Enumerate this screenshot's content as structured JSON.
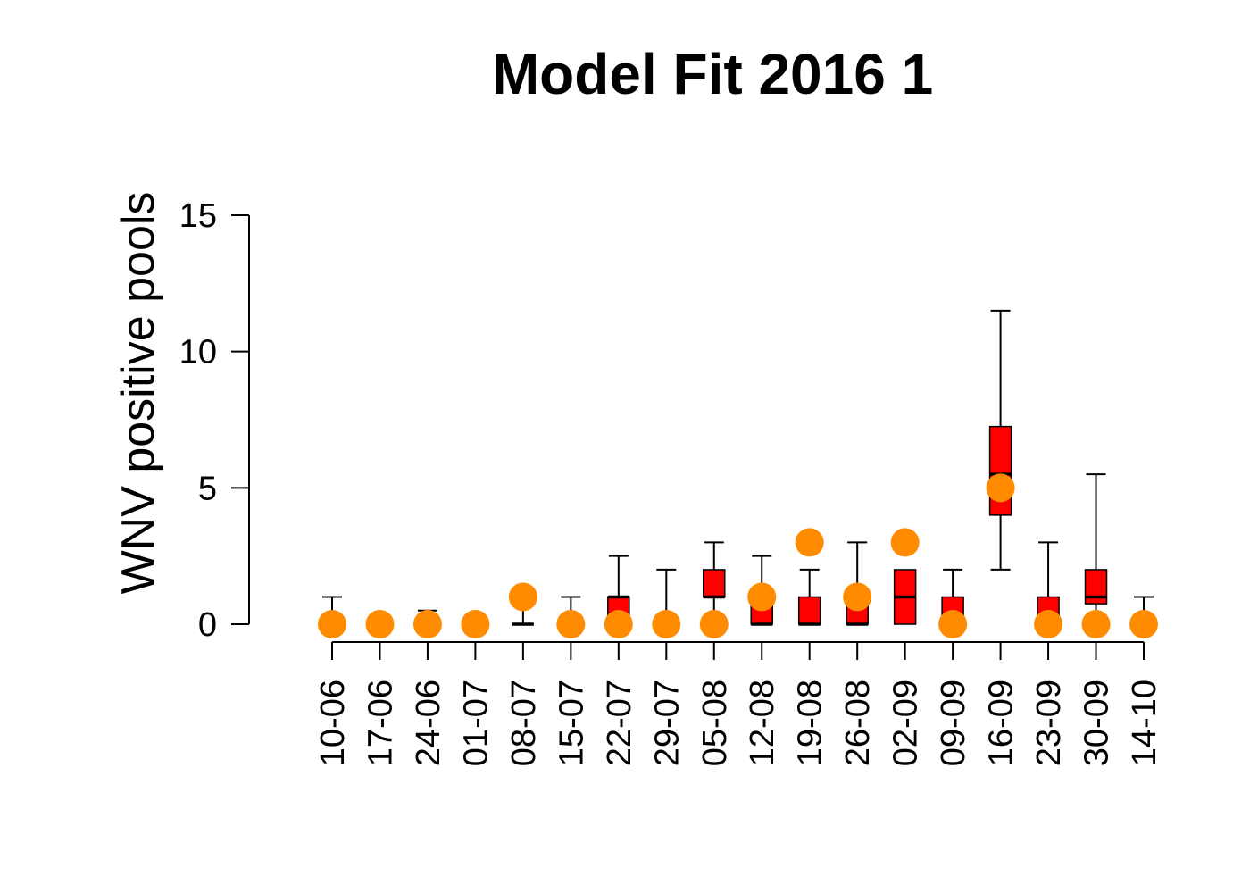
{
  "chart_data": {
    "type": "boxplot",
    "title": "Model Fit 2016 1",
    "ylabel": "WNV positive pools",
    "xlabel": "",
    "ylim": [
      0,
      15
    ],
    "yticks": [
      0,
      5,
      10,
      15
    ],
    "grid": false,
    "colors": {
      "box_fill": "#ff0000",
      "observed": "#ff8c00",
      "line": "#000000"
    },
    "categories": [
      "10-06",
      "17-06",
      "24-06",
      "01-07",
      "08-07",
      "15-07",
      "22-07",
      "29-07",
      "05-08",
      "12-08",
      "19-08",
      "26-08",
      "02-09",
      "09-09",
      "16-09",
      "23-09",
      "30-09",
      "14-10"
    ],
    "boxes": [
      {
        "min": 0,
        "q1": 0,
        "median": 0,
        "q3": 0,
        "max": 1
      },
      {
        "min": 0,
        "q1": 0,
        "median": 0,
        "q3": 0,
        "max": 0
      },
      {
        "min": 0,
        "q1": 0,
        "median": 0,
        "q3": 0,
        "max": 0.5
      },
      {
        "min": 0,
        "q1": 0,
        "median": 0,
        "q3": 0,
        "max": 0
      },
      {
        "min": 0,
        "q1": 0,
        "median": 0,
        "q3": 0,
        "max": 1
      },
      {
        "min": 0,
        "q1": 0,
        "median": 0,
        "q3": 0,
        "max": 1
      },
      {
        "min": 0,
        "q1": 0,
        "median": 1,
        "q3": 1,
        "max": 2.5
      },
      {
        "min": 0,
        "q1": 0,
        "median": 0,
        "q3": 0,
        "max": 2
      },
      {
        "min": 0,
        "q1": 1,
        "median": 1,
        "q3": 2,
        "max": 3
      },
      {
        "min": 0,
        "q1": 0,
        "median": 0,
        "q3": 1,
        "max": 2.5
      },
      {
        "min": 0,
        "q1": 0,
        "median": 0,
        "q3": 1,
        "max": 2
      },
      {
        "min": 0,
        "q1": 0,
        "median": 0,
        "q3": 1,
        "max": 3
      },
      {
        "min": 0,
        "q1": 0,
        "median": 1,
        "q3": 2,
        "max": 2
      },
      {
        "min": 0,
        "q1": 0,
        "median": 0,
        "q3": 1,
        "max": 2
      },
      {
        "min": 2,
        "q1": 4,
        "median": 5.5,
        "q3": 7.25,
        "max": 11.5
      },
      {
        "min": 0,
        "q1": 0,
        "median": 0,
        "q3": 1,
        "max": 3
      },
      {
        "min": 0,
        "q1": 0.75,
        "median": 1,
        "q3": 2,
        "max": 5.5
      },
      {
        "min": 0,
        "q1": 0,
        "median": 0,
        "q3": 0,
        "max": 1
      }
    ],
    "observed": [
      0,
      0,
      0,
      0,
      1,
      0,
      0,
      0,
      0,
      1,
      3,
      1,
      3,
      0,
      5,
      0,
      0,
      0
    ]
  }
}
